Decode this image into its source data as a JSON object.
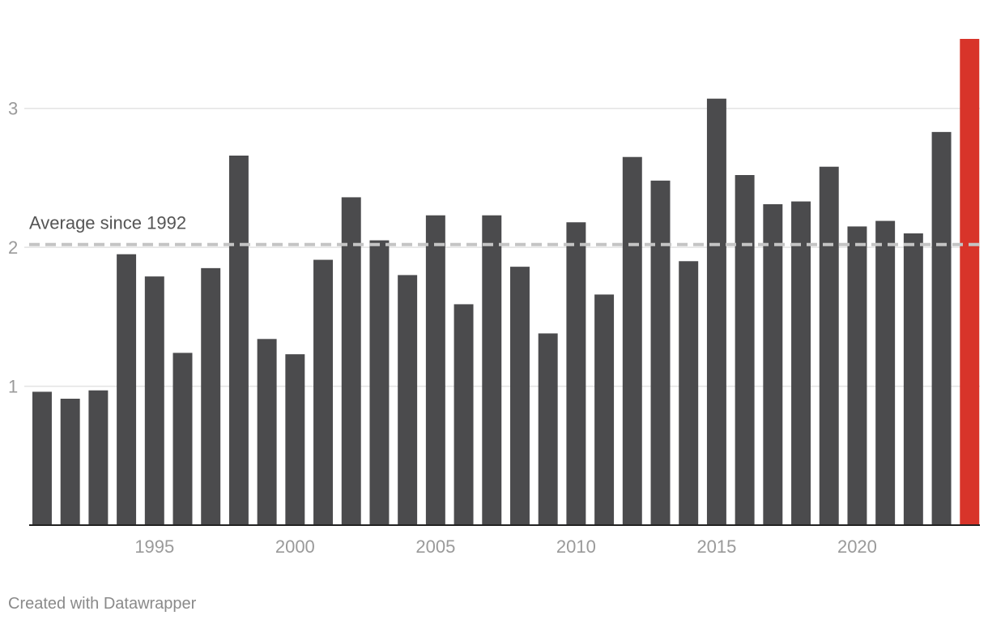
{
  "chart_data": {
    "type": "bar",
    "categories": [
      "1991",
      "1992",
      "1993",
      "1994",
      "1995",
      "1996",
      "1997",
      "1998",
      "1999",
      "2000",
      "2001",
      "2002",
      "2003",
      "2004",
      "2005",
      "2006",
      "2007",
      "2008",
      "2009",
      "2010",
      "2011",
      "2012",
      "2013",
      "2014",
      "2015",
      "2016",
      "2017",
      "2018",
      "2019",
      "2020",
      "2021",
      "2022",
      "2023",
      "2024"
    ],
    "values": [
      0.96,
      0.91,
      0.97,
      1.95,
      1.79,
      1.24,
      1.85,
      2.66,
      1.34,
      1.23,
      1.91,
      2.36,
      2.05,
      1.8,
      2.23,
      1.59,
      2.23,
      1.86,
      1.38,
      2.18,
      1.66,
      2.65,
      2.48,
      1.9,
      3.07,
      2.52,
      2.31,
      2.33,
      2.58,
      2.15,
      2.19,
      2.1,
      2.83,
      3.5
    ],
    "highlight_index": 33,
    "bar_color": "#4b4b4d",
    "highlight_color": "#d8342a",
    "ylim": [
      0,
      3.5
    ],
    "y_ticks": [
      1,
      2,
      3
    ],
    "x_tick_labels": [
      "1995",
      "2000",
      "2005",
      "2010",
      "2015",
      "2020"
    ],
    "average": {
      "value": 2.02,
      "label": "Average since 1992"
    },
    "grid": true
  },
  "footer": {
    "credit": "Created with Datawrapper"
  }
}
